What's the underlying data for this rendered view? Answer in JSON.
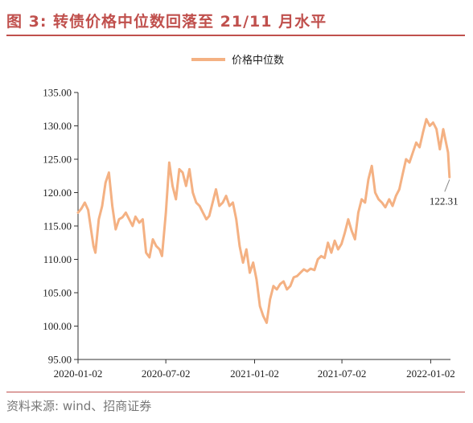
{
  "figure": {
    "title": "图 3: 转债价格中位数回落至 21/11 月水平",
    "source": "资料来源: wind、招商证券"
  },
  "chart_data": {
    "type": "line",
    "title": "图 3: 转债价格中位数回落至 21/11 月水平",
    "xlabel": "",
    "ylabel": "",
    "x_ticks": [
      "2020-01-02",
      "2020-07-02",
      "2021-01-02",
      "2021-07-02",
      "2022-01-02"
    ],
    "y_ticks": [
      "95.00",
      "100.00",
      "105.00",
      "110.00",
      "115.00",
      "120.00",
      "125.00",
      "130.00",
      "135.00"
    ],
    "ylim": [
      95,
      135
    ],
    "xlim": [
      "2020-01-02",
      "2022-02-12"
    ],
    "grid": false,
    "legend_position": "top-center",
    "series": [
      {
        "name": "价格中位数",
        "color": "#f4b183",
        "points": [
          [
            "2020-01-02",
            117.0
          ],
          [
            "2020-01-09",
            117.6
          ],
          [
            "2020-01-16",
            118.5
          ],
          [
            "2020-01-23",
            117.4
          ],
          [
            "2020-02-03",
            112.0
          ],
          [
            "2020-02-07",
            111.0
          ],
          [
            "2020-02-14",
            116.0
          ],
          [
            "2020-02-21",
            118.0
          ],
          [
            "2020-02-28",
            121.5
          ],
          [
            "2020-03-06",
            123.0
          ],
          [
            "2020-03-13",
            118.0
          ],
          [
            "2020-03-20",
            114.5
          ],
          [
            "2020-03-27",
            116.0
          ],
          [
            "2020-04-03",
            116.3
          ],
          [
            "2020-04-10",
            117.0
          ],
          [
            "2020-04-17",
            116.0
          ],
          [
            "2020-04-24",
            115.0
          ],
          [
            "2020-04-30",
            116.4
          ],
          [
            "2020-05-08",
            115.5
          ],
          [
            "2020-05-15",
            116.0
          ],
          [
            "2020-05-22",
            111.0
          ],
          [
            "2020-05-29",
            110.3
          ],
          [
            "2020-06-05",
            113.0
          ],
          [
            "2020-06-12",
            112.0
          ],
          [
            "2020-06-19",
            111.5
          ],
          [
            "2020-06-24",
            110.5
          ],
          [
            "2020-07-02",
            117.0
          ],
          [
            "2020-07-09",
            124.5
          ],
          [
            "2020-07-16",
            121.0
          ],
          [
            "2020-07-23",
            119.0
          ],
          [
            "2020-07-30",
            123.5
          ],
          [
            "2020-08-06",
            123.0
          ],
          [
            "2020-08-13",
            121.0
          ],
          [
            "2020-08-20",
            123.5
          ],
          [
            "2020-08-27",
            120.0
          ],
          [
            "2020-09-03",
            118.5
          ],
          [
            "2020-09-10",
            118.0
          ],
          [
            "2020-09-17",
            117.0
          ],
          [
            "2020-09-24",
            116.0
          ],
          [
            "2020-09-30",
            116.5
          ],
          [
            "2020-10-14",
            120.5
          ],
          [
            "2020-10-21",
            118.0
          ],
          [
            "2020-10-28",
            118.5
          ],
          [
            "2020-11-04",
            119.5
          ],
          [
            "2020-11-11",
            118.0
          ],
          [
            "2020-11-18",
            118.5
          ],
          [
            "2020-11-25",
            116.0
          ],
          [
            "2020-12-02",
            112.0
          ],
          [
            "2020-12-09",
            109.5
          ],
          [
            "2020-12-16",
            111.5
          ],
          [
            "2020-12-23",
            108.0
          ],
          [
            "2020-12-30",
            109.5
          ],
          [
            "2021-01-06",
            107.0
          ],
          [
            "2021-01-13",
            103.0
          ],
          [
            "2021-01-20",
            101.5
          ],
          [
            "2021-01-27",
            100.5
          ],
          [
            "2021-02-03",
            104.0
          ],
          [
            "2021-02-10",
            106.0
          ],
          [
            "2021-02-17",
            105.5
          ],
          [
            "2021-02-24",
            106.3
          ],
          [
            "2021-03-03",
            106.7
          ],
          [
            "2021-03-10",
            105.5
          ],
          [
            "2021-03-17",
            106.0
          ],
          [
            "2021-03-24",
            107.3
          ],
          [
            "2021-03-31",
            107.5
          ],
          [
            "2021-04-07",
            108.0
          ],
          [
            "2021-04-14",
            108.5
          ],
          [
            "2021-04-21",
            108.2
          ],
          [
            "2021-04-28",
            108.6
          ],
          [
            "2021-05-06",
            108.4
          ],
          [
            "2021-05-13",
            110.0
          ],
          [
            "2021-05-20",
            110.5
          ],
          [
            "2021-05-27",
            110.2
          ],
          [
            "2021-06-03",
            112.5
          ],
          [
            "2021-06-10",
            111.0
          ],
          [
            "2021-06-17",
            112.8
          ],
          [
            "2021-06-24",
            111.5
          ],
          [
            "2021-07-01",
            112.3
          ],
          [
            "2021-07-08",
            114.0
          ],
          [
            "2021-07-15",
            116.0
          ],
          [
            "2021-07-22",
            114.3
          ],
          [
            "2021-07-29",
            113.0
          ],
          [
            "2021-08-05",
            117.0
          ],
          [
            "2021-08-12",
            119.0
          ],
          [
            "2021-08-19",
            118.5
          ],
          [
            "2021-08-26",
            122.0
          ],
          [
            "2021-09-02",
            124.0
          ],
          [
            "2021-09-09",
            120.0
          ],
          [
            "2021-09-16",
            119.0
          ],
          [
            "2021-09-23",
            118.5
          ],
          [
            "2021-09-30",
            117.8
          ],
          [
            "2021-10-08",
            119.0
          ],
          [
            "2021-10-15",
            118.0
          ],
          [
            "2021-10-22",
            119.5
          ],
          [
            "2021-10-29",
            120.5
          ],
          [
            "2021-11-05",
            122.8
          ],
          [
            "2021-11-12",
            125.0
          ],
          [
            "2021-11-19",
            124.5
          ],
          [
            "2021-11-26",
            126.0
          ],
          [
            "2021-12-03",
            127.5
          ],
          [
            "2021-12-10",
            126.8
          ],
          [
            "2021-12-17",
            129.0
          ],
          [
            "2021-12-24",
            131.0
          ],
          [
            "2021-12-31",
            130.0
          ],
          [
            "2022-01-07",
            130.5
          ],
          [
            "2022-01-14",
            129.5
          ],
          [
            "2022-01-21",
            126.5
          ],
          [
            "2022-01-28",
            129.5
          ],
          [
            "2022-02-07",
            126.0
          ],
          [
            "2022-02-10",
            122.31
          ]
        ]
      }
    ],
    "annotations": [
      {
        "x": "2022-02-10",
        "y": 122.31,
        "text": "122.31"
      }
    ]
  }
}
